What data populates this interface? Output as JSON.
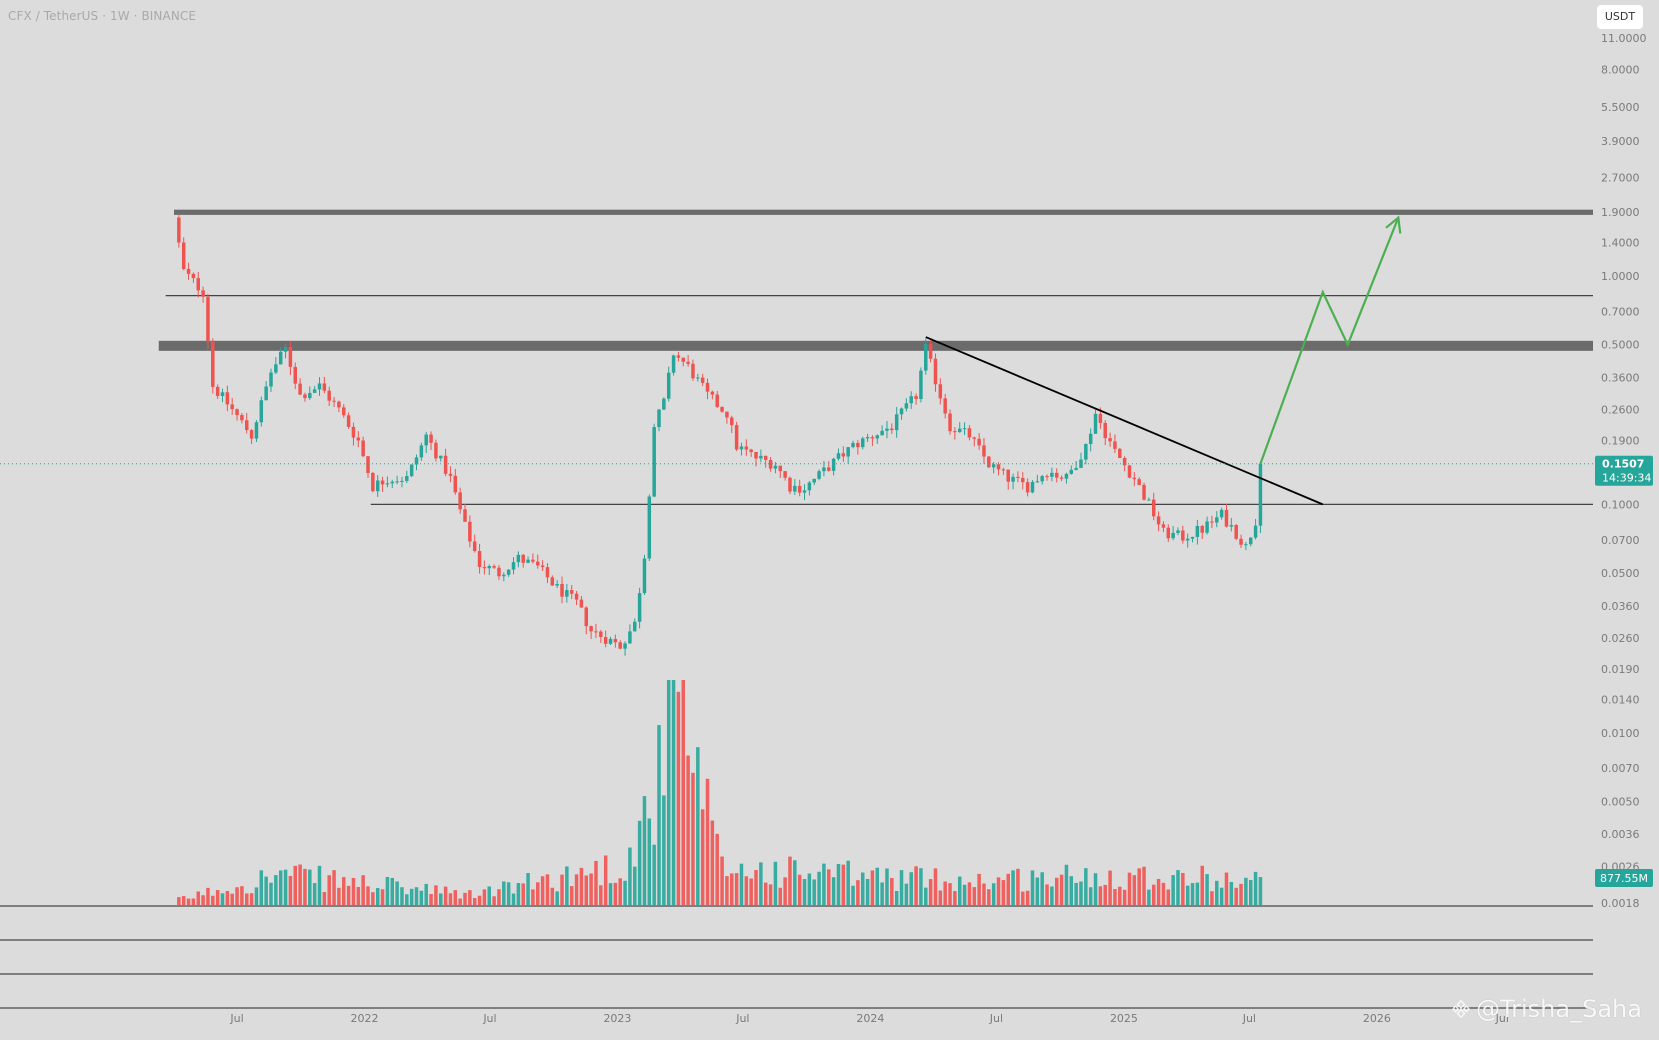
{
  "header": {
    "symbol_title": "CFX / TetherUS · 1W · BINANCE",
    "currency_button": "USDT"
  },
  "watermark": {
    "text": "@Trisha_Saha",
    "icon": "binance-logo-icon"
  },
  "colors": {
    "background": "#dcdcdc",
    "up": "#26a69a",
    "down": "#ef5350",
    "zone": "#6b6b6b",
    "trendline": "#000000",
    "projection": "#4caf50",
    "price_badge": "#26a69a"
  },
  "chart_data": {
    "type": "candlestick",
    "symbol": "CFX / TetherUS",
    "interval": "1W",
    "exchange": "BINANCE",
    "y_scale": "log",
    "ylim": [
      0.0018,
      11.0
    ],
    "y_ticks": [
      "11.0000",
      "8.0000",
      "5.5000",
      "3.9000",
      "2.7000",
      "1.9000",
      "1.4000",
      "1.0000",
      "0.7000",
      "0.5000",
      "0.3600",
      "0.2600",
      "0.1900",
      "0.1000",
      "0.0700",
      "0.0500",
      "0.0360",
      "0.0260",
      "0.0190",
      "0.0140",
      "0.0100",
      "0.0070",
      "0.0050",
      "0.0036",
      "0.0026",
      "0.0018"
    ],
    "x_ticks": [
      "Jul",
      "2022",
      "Jul",
      "2023",
      "Jul",
      "2024",
      "Jul",
      "2025",
      "Jul",
      "2026",
      "Jul"
    ],
    "x_range": [
      "2021-04-01",
      "2026-10-01"
    ],
    "current_price": "0.1507",
    "countdown": "14:39:34",
    "volume_label": "877.55M",
    "grid": false,
    "price_path": [
      [
        "2021-04-01",
        1.8
      ],
      [
        "2021-04-15",
        1.05
      ],
      [
        "2021-05-13",
        0.85
      ],
      [
        "2021-05-27",
        0.33
      ],
      [
        "2021-06-24",
        0.26
      ],
      [
        "2021-07-22",
        0.2
      ],
      [
        "2021-08-19",
        0.38
      ],
      [
        "2021-09-09",
        0.48
      ],
      [
        "2021-09-30",
        0.3
      ],
      [
        "2021-10-28",
        0.33
      ],
      [
        "2021-11-25",
        0.26
      ],
      [
        "2021-12-23",
        0.19
      ],
      [
        "2022-01-13",
        0.12
      ],
      [
        "2022-02-03",
        0.13
      ],
      [
        "2022-03-03",
        0.13
      ],
      [
        "2022-03-31",
        0.2
      ],
      [
        "2022-05-05",
        0.13
      ],
      [
        "2022-05-26",
        0.08
      ],
      [
        "2022-06-16",
        0.055
      ],
      [
        "2022-07-14",
        0.05
      ],
      [
        "2022-08-11",
        0.058
      ],
      [
        "2022-09-08",
        0.053
      ],
      [
        "2022-10-06",
        0.043
      ],
      [
        "2022-11-03",
        0.037
      ],
      [
        "2022-11-24",
        0.028
      ],
      [
        "2022-12-15",
        0.026
      ],
      [
        "2023-01-05",
        0.024
      ],
      [
        "2023-01-26",
        0.03
      ],
      [
        "2023-02-09",
        0.06
      ],
      [
        "2023-02-23",
        0.22
      ],
      [
        "2023-03-09",
        0.28
      ],
      [
        "2023-03-23",
        0.46
      ],
      [
        "2023-04-13",
        0.4
      ],
      [
        "2023-05-11",
        0.3
      ],
      [
        "2023-06-08",
        0.25
      ],
      [
        "2023-06-22",
        0.18
      ],
      [
        "2023-07-20",
        0.16
      ],
      [
        "2023-08-17",
        0.15
      ],
      [
        "2023-09-07",
        0.12
      ],
      [
        "2023-09-28",
        0.118
      ],
      [
        "2023-10-26",
        0.14
      ],
      [
        "2023-11-16",
        0.16
      ],
      [
        "2023-12-07",
        0.18
      ],
      [
        "2024-01-04",
        0.2
      ],
      [
        "2024-02-01",
        0.22
      ],
      [
        "2024-03-07",
        0.3
      ],
      [
        "2024-03-21",
        0.48
      ],
      [
        "2024-04-11",
        0.3
      ],
      [
        "2024-04-25",
        0.22
      ],
      [
        "2024-05-23",
        0.2
      ],
      [
        "2024-06-20",
        0.15
      ],
      [
        "2024-07-18",
        0.13
      ],
      [
        "2024-08-15",
        0.12
      ],
      [
        "2024-09-12",
        0.14
      ],
      [
        "2024-10-10",
        0.13
      ],
      [
        "2024-11-07",
        0.18
      ],
      [
        "2024-11-21",
        0.25
      ],
      [
        "2024-12-19",
        0.17
      ],
      [
        "2025-01-16",
        0.13
      ],
      [
        "2025-02-06",
        0.1
      ],
      [
        "2025-02-27",
        0.075
      ],
      [
        "2025-03-27",
        0.072
      ],
      [
        "2025-04-24",
        0.078
      ],
      [
        "2025-05-22",
        0.09
      ],
      [
        "2025-06-12",
        0.075
      ],
      [
        "2025-06-26",
        0.065
      ],
      [
        "2025-07-10",
        0.085
      ],
      [
        "2025-07-17",
        0.1507
      ]
    ],
    "volume_scale": [
      "2021-04-01",
      "2021-09-01",
      "2022-06-01",
      "2023-01-15",
      "2023-03-01",
      "2023-03-23",
      "2023-06-01",
      "2024-01-01",
      "2024-06-01",
      "2025-01-01",
      "2025-07-17"
    ],
    "volume_profile": [
      0.02,
      0.15,
      0.05,
      0.2,
      0.6,
      1.0,
      0.18,
      0.14,
      0.12,
      0.15,
      0.12
    ],
    "levels": [
      {
        "type": "zone",
        "low": 1.85,
        "high": 1.95,
        "from": "2021-04-01"
      },
      {
        "type": "line",
        "value": 0.82,
        "from": "2021-03-20"
      },
      {
        "type": "zone",
        "low": 0.47,
        "high": 0.52,
        "from": "2021-03-10"
      },
      {
        "type": "line",
        "value": 0.1,
        "from": "2022-01-10"
      }
    ],
    "trendline": [
      [
        "2024-03-21",
        0.54
      ],
      [
        "2025-10-15",
        0.1
      ]
    ],
    "projection": [
      [
        "2025-07-17",
        0.1507
      ],
      [
        "2025-10-15",
        0.85
      ],
      [
        "2025-11-20",
        0.5
      ],
      [
        "2026-02-01",
        1.8
      ]
    ]
  }
}
